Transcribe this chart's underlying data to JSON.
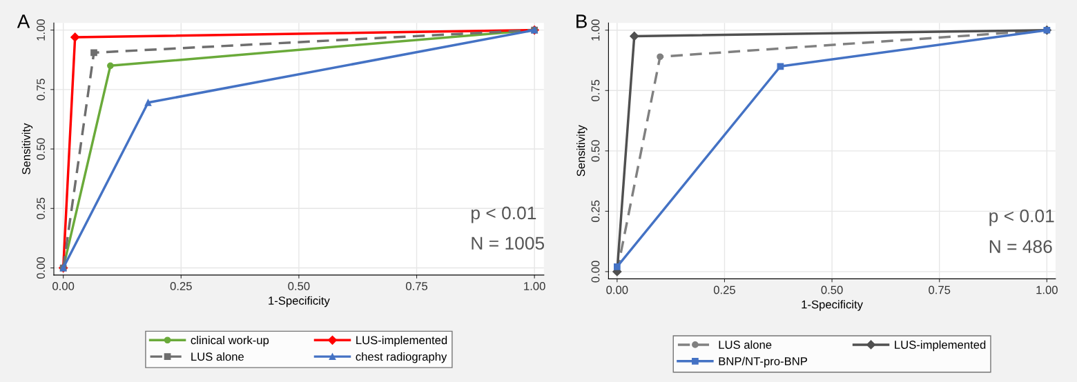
{
  "chart_data": [
    {
      "type": "line",
      "title": "A",
      "xlabel": "1-Specificity",
      "ylabel": "Sensitivity",
      "xlim": [
        -0.02,
        1.02
      ],
      "ylim": [
        -0.03,
        1.03
      ],
      "xticks": [
        {
          "value": 0,
          "label": "0.00"
        },
        {
          "value": 0.25,
          "label": "0.25"
        },
        {
          "value": 0.5,
          "label": "0.50"
        },
        {
          "value": 0.75,
          "label": "0.75"
        },
        {
          "value": 1,
          "label": "1.00"
        }
      ],
      "yticks": [
        {
          "value": 0,
          "label": "0.00"
        },
        {
          "value": 0.25,
          "label": "0.25"
        },
        {
          "value": 0.5,
          "label": "0.50"
        },
        {
          "value": 0.75,
          "label": "0.75"
        },
        {
          "value": 1,
          "label": "1.00"
        }
      ],
      "grid": true,
      "legend": "bottom",
      "annotations": [
        "p < 0.01",
        "N = 1005"
      ],
      "series": [
        {
          "name": "clinical work-up",
          "color": "#6aaa3a",
          "x": [
            0,
            0.1,
            1
          ],
          "values": [
            0,
            0.85,
            1
          ],
          "marker": "circle",
          "line_style": "solid"
        },
        {
          "name": "LUS-implemented",
          "color": "#ff0000",
          "x": [
            0,
            0.025,
            1
          ],
          "values": [
            0,
            0.97,
            1
          ],
          "marker": "diamond",
          "line_style": "solid"
        },
        {
          "name": "LUS alone",
          "color": "#6e6e6e",
          "x": [
            0,
            0.065,
            1
          ],
          "values": [
            0,
            0.905,
            1
          ],
          "marker": "square",
          "line_style": "dashed"
        },
        {
          "name": "chest radiography",
          "color": "#4472c4",
          "x": [
            0,
            0.18,
            1
          ],
          "values": [
            0,
            0.695,
            1
          ],
          "marker": "triangle",
          "line_style": "solid"
        }
      ]
    },
    {
      "type": "line",
      "title": "B",
      "xlabel": "1-Specificity",
      "ylabel": "Sensitivity",
      "xlim": [
        -0.02,
        1.02
      ],
      "ylim": [
        -0.03,
        1.03
      ],
      "xticks": [
        {
          "value": 0,
          "label": "0.00"
        },
        {
          "value": 0.25,
          "label": "0.25"
        },
        {
          "value": 0.5,
          "label": "0.50"
        },
        {
          "value": 0.75,
          "label": "0.75"
        },
        {
          "value": 1,
          "label": "1.00"
        }
      ],
      "yticks": [
        {
          "value": 0,
          "label": "0.00"
        },
        {
          "value": 0.25,
          "label": "0.25"
        },
        {
          "value": 0.5,
          "label": "0.50"
        },
        {
          "value": 0.75,
          "label": "0.75"
        },
        {
          "value": 1,
          "label": "1.00"
        }
      ],
      "grid": true,
      "legend": "bottom",
      "annotations": [
        "p < 0.01",
        "N = 486"
      ],
      "series": [
        {
          "name": "LUS alone",
          "color": "#808080",
          "x": [
            0,
            0.1,
            1
          ],
          "values": [
            0,
            0.89,
            1
          ],
          "marker": "circle",
          "line_style": "dashed"
        },
        {
          "name": "LUS-implemented",
          "color": "#505050",
          "x": [
            0,
            0.04,
            1
          ],
          "values": [
            0,
            0.975,
            1
          ],
          "marker": "diamond",
          "line_style": "solid"
        },
        {
          "name": "BNP/NT-pro-BNP",
          "color": "#4472c4",
          "x": [
            0,
            0.38,
            1
          ],
          "values": [
            0.02,
            0.85,
            1
          ],
          "marker": "square",
          "line_style": "solid"
        }
      ]
    }
  ]
}
